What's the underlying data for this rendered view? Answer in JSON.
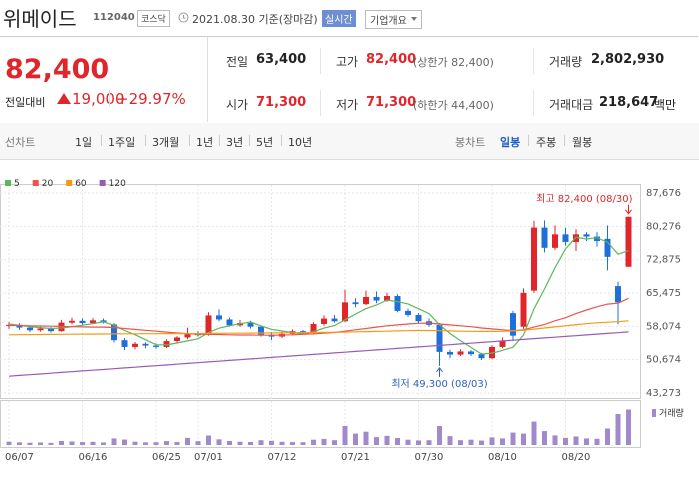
{
  "header": {
    "name": "위메이드",
    "code": "112040",
    "market": "코스닥",
    "date": "2021.08.30 기준(장마감)",
    "realtime": "실시간",
    "company_info": "기업개요"
  },
  "quote": {
    "price": "82,400",
    "change_label": "전일대비",
    "change": "19,000",
    "change_rate": "+29.97%",
    "stats": [
      {
        "label": "전일",
        "value": "63,400"
      },
      {
        "label": "고가",
        "value": "82,400",
        "note": "(상한가 82,400)"
      },
      {
        "label": "거래량",
        "value": "2,802,930"
      },
      {
        "label": "시가",
        "value": "71,300"
      },
      {
        "label": "저가",
        "value": "71,300",
        "note": "(하한가 44,400)"
      },
      {
        "label": "거래대금",
        "value": "218,647",
        "unit": "백만"
      }
    ]
  },
  "tabs": {
    "line_chart": {
      "label": "선차트",
      "periods": [
        "1일",
        "1주일",
        "3개월",
        "1년",
        "3년",
        "5년",
        "10년"
      ]
    },
    "candle_chart": {
      "label": "봉차트",
      "periods": [
        "일봉",
        "주봉",
        "월봉"
      ]
    }
  },
  "chart_data": {
    "type": "candlestick",
    "categories": [
      "06/07",
      null,
      null,
      null,
      null,
      null,
      null,
      "06/16",
      null,
      null,
      null,
      null,
      null,
      null,
      "06/25",
      null,
      null,
      null,
      "07/01",
      null,
      null,
      null,
      null,
      null,
      null,
      "07/12",
      null,
      null,
      null,
      null,
      null,
      null,
      "07/21",
      null,
      null,
      null,
      null,
      null,
      null,
      "07/30",
      null,
      null,
      null,
      null,
      null,
      null,
      "08/10",
      null,
      null,
      null,
      null,
      null,
      null,
      "08/20",
      null,
      null,
      null,
      null,
      null,
      null
    ],
    "open": [
      58200,
      58400,
      57800,
      57200,
      57600,
      57000,
      58900,
      59300,
      58800,
      59400,
      58500,
      55000,
      53500,
      54200,
      53800,
      53500,
      54800,
      55600,
      56500,
      56500,
      60500,
      59600,
      58300,
      58800,
      58000,
      56200,
      55800,
      56400,
      57000,
      56600,
      58600,
      59800,
      59200,
      63400,
      63000,
      64600,
      63800,
      64800,
      61500,
      60600,
      59200,
      58400,
      52400,
      51800,
      52500,
      51900,
      51000,
      53500,
      61000,
      58000,
      66000,
      80000,
      75500,
      78500,
      76800,
      78500,
      78000,
      77500,
      67000,
      71300
    ],
    "high": [
      59000,
      58800,
      58200,
      58000,
      57900,
      59500,
      60000,
      59800,
      59900,
      59800,
      58800,
      55500,
      54600,
      54500,
      54300,
      55200,
      55900,
      57800,
      57000,
      61200,
      61800,
      60000,
      59500,
      59300,
      58300,
      56800,
      56900,
      57400,
      57300,
      59000,
      60500,
      60600,
      66200,
      64300,
      66000,
      65800,
      65500,
      65200,
      62000,
      61000,
      59800,
      58800,
      52900,
      53000,
      52800,
      52200,
      53900,
      55600,
      61500,
      66500,
      81500,
      81600,
      80500,
      80000,
      79600,
      79000,
      79000,
      80500,
      68000,
      82400
    ],
    "low": [
      57500,
      57300,
      56800,
      56900,
      56700,
      56900,
      58500,
      58400,
      58600,
      58700,
      54500,
      52800,
      53000,
      53200,
      53100,
      53300,
      54300,
      55200,
      55800,
      56000,
      59200,
      58000,
      58000,
      57600,
      55800,
      55000,
      55500,
      56100,
      56200,
      56400,
      58200,
      58900,
      59000,
      62300,
      62800,
      63200,
      63500,
      61200,
      60200,
      58800,
      58000,
      49300,
      51000,
      51500,
      51500,
      50600,
      50800,
      53200,
      54800,
      57500,
      65500,
      74500,
      75000,
      76000,
      74800,
      77000,
      75800,
      70500,
      58500,
      71300
    ],
    "close": [
      58400,
      57800,
      57200,
      57600,
      57000,
      58900,
      59300,
      58800,
      59400,
      59000,
      55000,
      53500,
      54200,
      53800,
      53500,
      54800,
      55600,
      56500,
      56100,
      60500,
      59600,
      58300,
      58800,
      58000,
      56200,
      55800,
      56400,
      57000,
      56600,
      58600,
      59800,
      59200,
      63400,
      63000,
      64600,
      63800,
      64800,
      61500,
      60600,
      59200,
      58400,
      52400,
      51800,
      52500,
      51900,
      51000,
      53500,
      54800,
      56000,
      65500,
      80000,
      75500,
      78500,
      76800,
      78500,
      78000,
      77000,
      73500,
      63400,
      82400
    ],
    "up_color": "#e0262b",
    "down_color": "#1e6fd9",
    "moving_averages": [
      {
        "name": "5",
        "color": "#5cb85c",
        "values": [
          58600,
          58300,
          58000,
          57800,
          57600,
          57700,
          58000,
          58320,
          58680,
          59080,
          58300,
          57140,
          56220,
          55100,
          54000,
          53960,
          54380,
          54840,
          55300,
          56700,
          57660,
          58200,
          58660,
          59040,
          58180,
          57420,
          57040,
          56680,
          56400,
          56880,
          57680,
          58240,
          59520,
          60800,
          62000,
          62800,
          63920,
          63540,
          63060,
          61980,
          60900,
          58420,
          56480,
          54860,
          53400,
          51920,
          52140,
          52740,
          53440,
          56160,
          61960,
          66360,
          71100,
          75260,
          77860,
          77460,
          77760,
          76760,
          74080,
          74860
        ]
      },
      {
        "name": "20",
        "color": "#ef5350",
        "values": [
          58300,
          58250,
          58200,
          58150,
          58100,
          58050,
          58000,
          57950,
          57900,
          57900,
          57800,
          57600,
          57400,
          57200,
          57000,
          56800,
          56600,
          56450,
          56300,
          56300,
          56250,
          56200,
          56150,
          56150,
          56100,
          56100,
          56150,
          56200,
          56300,
          56400,
          56550,
          56700,
          57000,
          57300,
          57600,
          57900,
          58200,
          58400,
          58600,
          58750,
          58800,
          58600,
          58400,
          58200,
          58000,
          57700,
          57500,
          57300,
          57100,
          57300,
          57900,
          58500,
          59300,
          60000,
          60900,
          61700,
          62400,
          63000,
          63200,
          64300
        ]
      },
      {
        "name": "60",
        "color": "#f39c12",
        "values": [
          56200,
          56220,
          56240,
          56260,
          56280,
          56300,
          56320,
          56340,
          56360,
          56380,
          56400,
          56410,
          56420,
          56430,
          56440,
          56450,
          56460,
          56470,
          56480,
          56500,
          56520,
          56540,
          56560,
          56580,
          56600,
          56620,
          56640,
          56660,
          56680,
          56700,
          56720,
          56750,
          56800,
          56850,
          56900,
          56950,
          57000,
          57050,
          57100,
          57150,
          57150,
          57100,
          57050,
          57000,
          56980,
          56950,
          56950,
          56980,
          57050,
          57200,
          57450,
          57700,
          57950,
          58200,
          58450,
          58650,
          58850,
          59000,
          59100,
          59300
        ]
      },
      {
        "name": "120",
        "color": "#9b59b6",
        "values": [
          47000,
          47170,
          47340,
          47500,
          47670,
          47840,
          48000,
          48170,
          48340,
          48500,
          48670,
          48840,
          49000,
          49170,
          49340,
          49500,
          49670,
          49840,
          50000,
          50170,
          50340,
          50500,
          50670,
          50840,
          51000,
          51170,
          51340,
          51500,
          51670,
          51840,
          52000,
          52170,
          52340,
          52500,
          52670,
          52840,
          53000,
          53170,
          53340,
          53500,
          53670,
          53840,
          54000,
          54170,
          54340,
          54500,
          54670,
          54840,
          55000,
          55170,
          55340,
          55500,
          55670,
          55840,
          56000,
          56170,
          56340,
          56500,
          56670,
          56840
        ]
      }
    ],
    "volume": {
      "name": "거래량",
      "color": "#a08acb",
      "ylim": [
        0,
        3000000
      ],
      "values": [
        260000,
        210000,
        180000,
        200000,
        170000,
        320000,
        280000,
        230000,
        250000,
        200000,
        520000,
        430000,
        260000,
        210000,
        220000,
        310000,
        240000,
        560000,
        300000,
        750000,
        450000,
        320000,
        260000,
        240000,
        380000,
        330000,
        250000,
        230000,
        220000,
        420000,
        480000,
        380000,
        1500000,
        900000,
        1050000,
        620000,
        720000,
        550000,
        420000,
        360000,
        380000,
        1500000,
        700000,
        380000,
        420000,
        350000,
        600000,
        520000,
        980000,
        900000,
        1850000,
        1100000,
        760000,
        560000,
        680000,
        520000,
        490000,
        1300000,
        2450000,
        2802930
      ]
    },
    "ylim": [
      43273,
      87676
    ],
    "yticks": [
      {
        "value": 87676,
        "label": "87,676"
      },
      {
        "value": 80276,
        "label": "80,276"
      },
      {
        "value": 72875,
        "label": "72,875"
      },
      {
        "value": 65475,
        "label": "65,475"
      },
      {
        "value": 58074,
        "label": "58,074"
      },
      {
        "value": 50674,
        "label": "50,674"
      },
      {
        "value": 43273,
        "label": "43,273"
      }
    ],
    "grid": true,
    "annotations": [
      {
        "text": "최고 82,400 (08/30)",
        "color": "#d92727"
      },
      {
        "text": "최저 49,300 (08/03)",
        "color": "#2b62b8"
      }
    ]
  }
}
